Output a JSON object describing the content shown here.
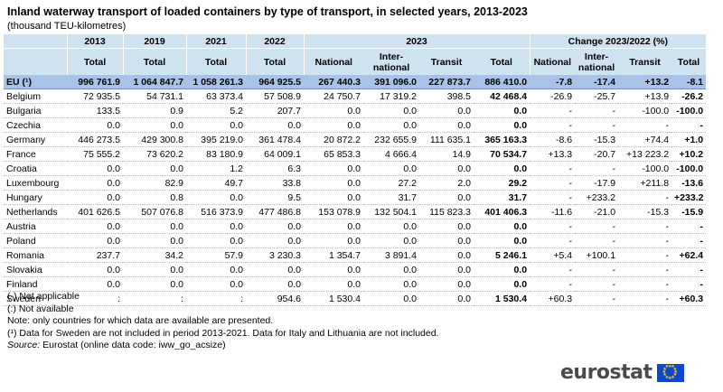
{
  "title": "Inland waterway transport of loaded containers by type of transport, in selected years, 2013-2023",
  "subtitle": "(thousand TEU-kilometres)",
  "header": {
    "years": [
      "2013",
      "2019",
      "2021",
      "2022",
      "2023",
      "Change 2023/2022 (%)"
    ],
    "subheaders": [
      "Total",
      "Total",
      "Total",
      "Total",
      "National",
      "Inter-national",
      "Transit",
      "Total",
      "National",
      "Inter-national",
      "Transit",
      "Total"
    ]
  },
  "eu_row": {
    "label": "EU (¹)",
    "values": [
      "996 761.9",
      "1 064 847.7",
      "1 058 261.3",
      "964 925.5",
      "267 440.3",
      "391 096.0",
      "227 873.7",
      "886 410.0",
      "-7.8",
      "-17.4",
      "+13.2",
      "-8.1"
    ]
  },
  "rows": [
    {
      "label": "Belgium",
      "values": [
        "72 935.5",
        "54 731.1",
        "63 373.4",
        "57 508.9",
        "24 750.7",
        "17 319.2",
        "398.5",
        "42 468.4",
        "-26.9",
        "-25.7",
        "+13.9",
        "-26.2"
      ]
    },
    {
      "label": "Bulgaria",
      "values": [
        "133.5",
        "0.9",
        "5.2",
        "207.7",
        "0.0",
        "0.0",
        "0.0",
        "0.0",
        "-",
        "-",
        "-100.0",
        "-100.0"
      ]
    },
    {
      "label": "Czechia",
      "values": [
        "0.0",
        "0.0",
        "0.0",
        "0.0",
        "0.0",
        "0.0",
        "0.0",
        "0.0",
        "-",
        "-",
        "-",
        "-"
      ]
    },
    {
      "label": "Germany",
      "values": [
        "446 273.5",
        "429 300.8",
        "395 219.0",
        "361 478.4",
        "20 872.2",
        "232 655.9",
        "111 635.1",
        "365 163.3",
        "-8.6",
        "-15.3",
        "+74.4",
        "+1.0"
      ]
    },
    {
      "label": "France",
      "values": [
        "75 555.2",
        "73 620.2",
        "83 180.9",
        "64 009.1",
        "65 853.3",
        "4 666.4",
        "14.9",
        "70 534.7",
        "+13.3",
        "-20.7",
        "+13 223.2",
        "+10.2"
      ]
    },
    {
      "label": "Croatia",
      "values": [
        "0.0",
        "0.0",
        "1.2",
        "6.3",
        "0.0",
        "0.0",
        "0.0",
        "0.0",
        "-",
        "-",
        "-100.0",
        "-100.0"
      ]
    },
    {
      "label": "Luxembourg",
      "values": [
        "0.0",
        "82.9",
        "49.7",
        "33.8",
        "0.0",
        "27.2",
        "2.0",
        "29.2",
        "-",
        "-17.9",
        "+211.8",
        "-13.6"
      ]
    },
    {
      "label": "Hungary",
      "values": [
        "0.0",
        "0.8",
        "0.0",
        "9.5",
        "0.0",
        "31.7",
        "0.0",
        "31.7",
        "-",
        "+233.2",
        "-",
        "+233.2"
      ]
    },
    {
      "label": "Netherlands",
      "values": [
        "401 626.5",
        "507 076.8",
        "516 373.9",
        "477 486.8",
        "153 078.9",
        "132 504.1",
        "115 823.3",
        "401 406.3",
        "-11.6",
        "-21.0",
        "-15.3",
        "-15.9"
      ]
    },
    {
      "label": "Austria",
      "values": [
        "0.0",
        "0.0",
        "0.0",
        "0.0",
        "0.0",
        "0.0",
        "0.0",
        "0.0",
        "-",
        "-",
        "-",
        "-"
      ]
    },
    {
      "label": "Poland",
      "values": [
        "0.0",
        "0.0",
        "0.0",
        "0.0",
        "0.0",
        "0.0",
        "0.0",
        "0.0",
        "-",
        "-",
        "-",
        "-"
      ]
    },
    {
      "label": "Romania",
      "values": [
        "237.7",
        "34.2",
        "57.9",
        "3 230.3",
        "1 354.7",
        "3 891.4",
        "0.0",
        "5 246.1",
        "+5.4",
        "+100.1",
        "-",
        "+62.4"
      ]
    },
    {
      "label": "Slovakia",
      "values": [
        "0.0",
        "0.0",
        "0.0",
        "0.0",
        "0.0",
        "0.0",
        "0.0",
        "0.0",
        "-",
        "-",
        "-",
        "-"
      ]
    },
    {
      "label": "Finland",
      "values": [
        "0.0",
        "0.0",
        "0.0",
        "0.0",
        "0.0",
        "0.0",
        "0.0",
        "0.0",
        "-",
        "-",
        "-",
        "-"
      ]
    },
    {
      "label": "Sweden",
      "values": [
        ":",
        ":",
        ":",
        "954.6",
        "1 530.4",
        "0.0",
        "0.0",
        "1 530.4",
        "+60.3",
        "-",
        "-",
        "+60.3"
      ]
    }
  ],
  "notes": [
    "(-) Not applicable",
    "(:) Not available",
    "Note: only countries for which data are available are presented.",
    "(¹) Data for Sweden are not included in period 2013-2021. Data for Italy and Lithuania are not included."
  ],
  "source": {
    "label": "Source:",
    "text": "Eurostat (online data code: iww_go_acsize)"
  },
  "logo": {
    "text": "eurostat",
    "flag_icon": "eu-flag-icon",
    "flag_color": "#0e47cb",
    "star_color": "#ffd617"
  }
}
